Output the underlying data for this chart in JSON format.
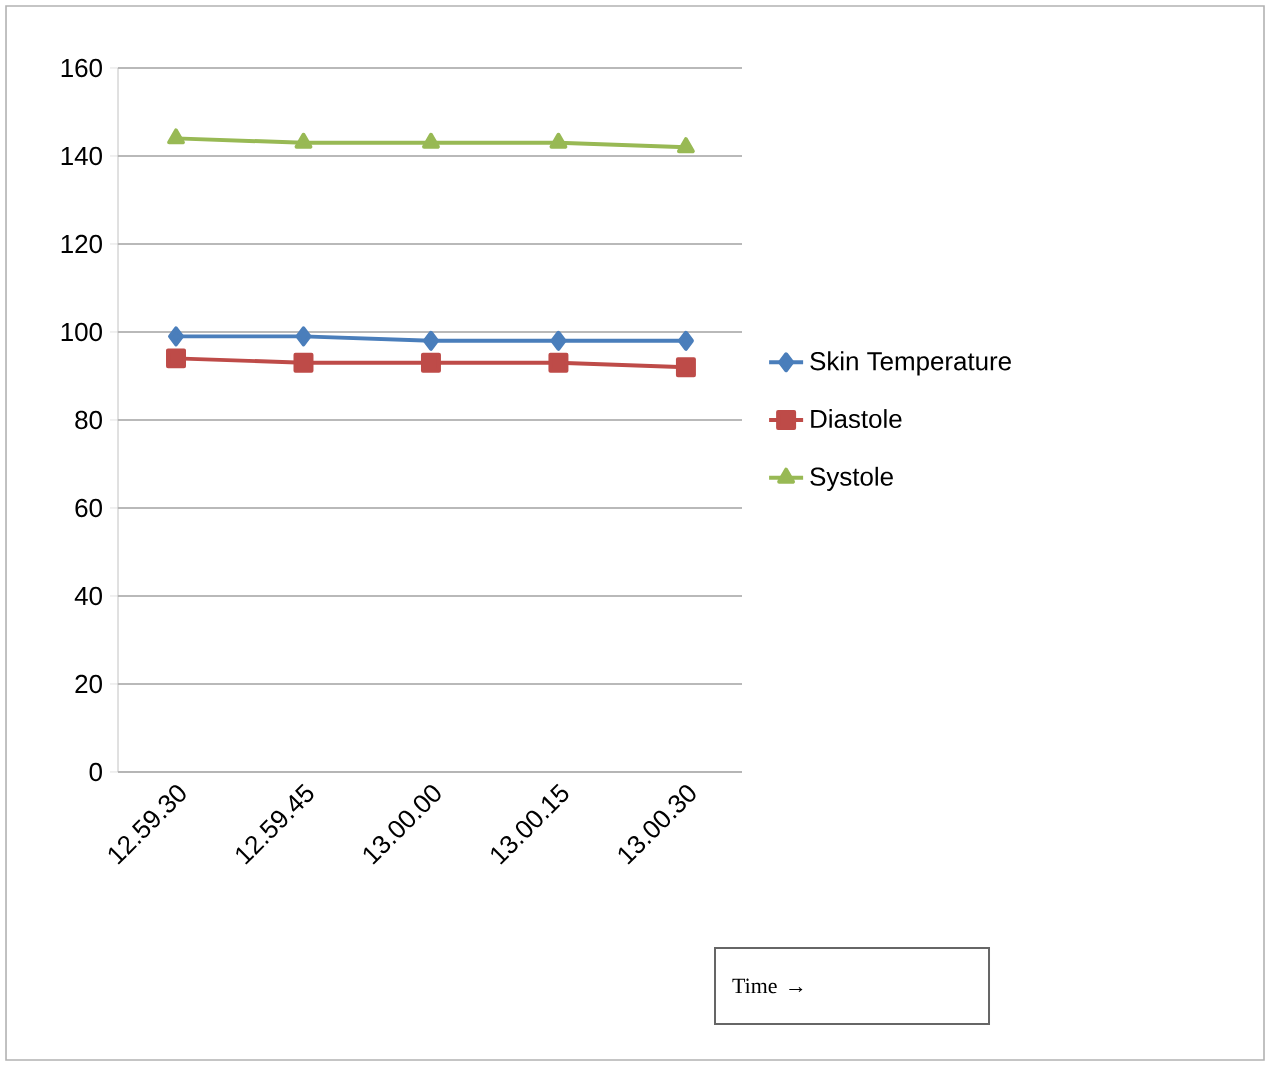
{
  "chart_data": {
    "type": "line",
    "annotations": [
      "Time →"
    ],
    "categories": [
      "12.59.30",
      "12.59.45",
      "13.00.00",
      "13.00.15",
      "13.00.30"
    ],
    "series": [
      {
        "name": "Skin Temperature",
        "color": "#4a7ebb",
        "marker": "diamond",
        "values": [
          99,
          99,
          98,
          98,
          98
        ]
      },
      {
        "name": "Diastole",
        "color": "#be4b48",
        "marker": "square",
        "values": [
          94,
          93,
          93,
          93,
          92
        ]
      },
      {
        "name": "Systole",
        "color": "#98b954",
        "marker": "triangle",
        "values": [
          144,
          143,
          143,
          143,
          142
        ]
      }
    ],
    "ylim": [
      0,
      160
    ],
    "yticks": [
      0,
      20,
      40,
      60,
      80,
      100,
      120,
      140,
      160
    ],
    "grid": "y",
    "legend": "right"
  }
}
